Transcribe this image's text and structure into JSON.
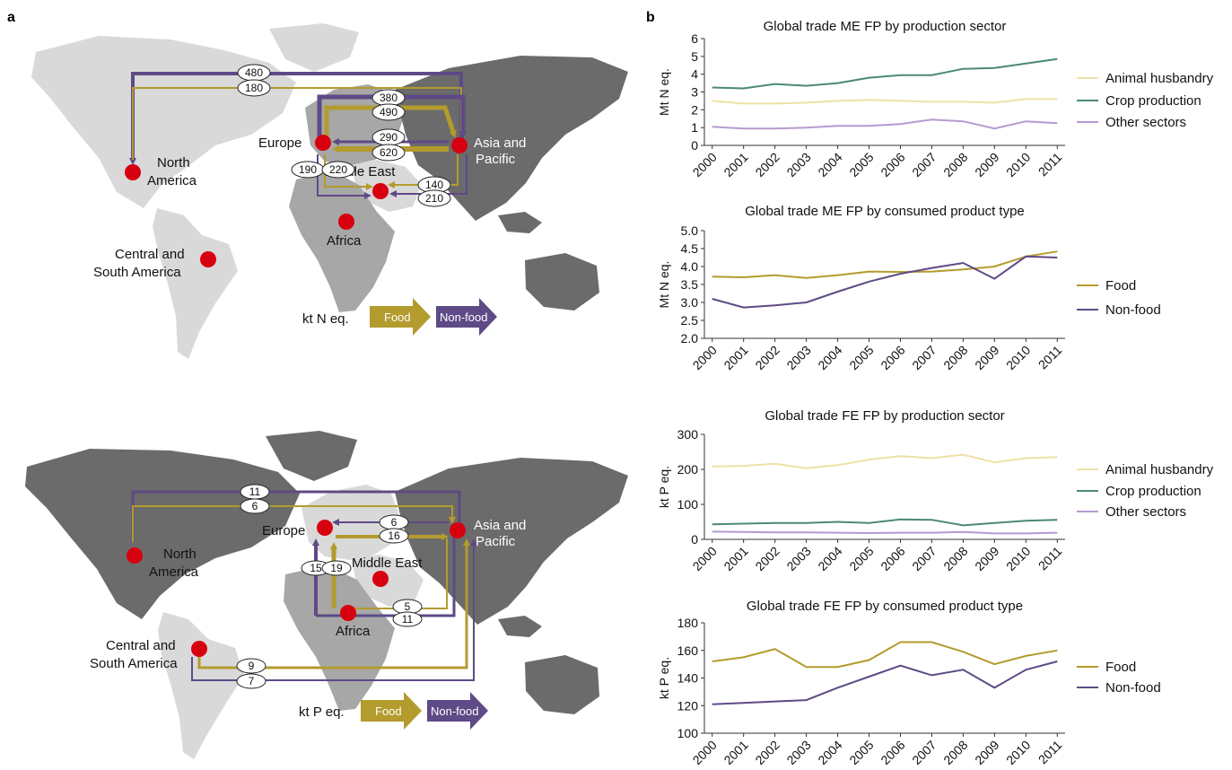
{
  "panel_labels": {
    "a": "a",
    "b": "b"
  },
  "colors": {
    "food": "#b39b2e",
    "nonfood": "#5e4a86",
    "animal": "#ede1a6",
    "crop": "#4a8a72",
    "other": "#b49bd0",
    "region_dark": "#6b6b6b",
    "region_mid": "#a7a7a7",
    "region_light": "#d9d9d9",
    "node": "#d7000f"
  },
  "maps": [
    {
      "unit_label": "kt N eq.",
      "legend_food": "Food",
      "legend_nonfood": "Non-food",
      "regions": {
        "north_america": [
          "North",
          "America"
        ],
        "central_south_america": [
          "Central and",
          "South America"
        ],
        "europe": [
          "Europe"
        ],
        "middle_east": [
          "Middle East"
        ],
        "africa": [
          "Africa"
        ],
        "asia_pacific": [
          "Asia and",
          "Pacific"
        ]
      },
      "flow_values": [
        "480",
        "180",
        "380",
        "490",
        "290",
        "620",
        "190",
        "220",
        "140",
        "210"
      ]
    },
    {
      "unit_label": "kt P eq.",
      "legend_food": "Food",
      "legend_nonfood": "Non-food",
      "regions": {
        "north_america": [
          "North",
          "America"
        ],
        "central_south_america": [
          "Central and",
          "South America"
        ],
        "europe": [
          "Europe"
        ],
        "middle_east": [
          "Middle East"
        ],
        "africa": [
          "Africa"
        ],
        "asia_pacific": [
          "Asia and",
          "Pacific"
        ]
      },
      "flow_values": [
        "11",
        "6",
        "6",
        "16",
        "15",
        "19",
        "5",
        "11",
        "9",
        "7"
      ]
    }
  ],
  "chart_data": [
    {
      "type": "line",
      "title": "Global trade ME FP by production sector",
      "ylabel": "Mt N eq.",
      "x": [
        "2000",
        "2001",
        "2002",
        "2003",
        "2004",
        "2005",
        "2006",
        "2007",
        "2008",
        "2009",
        "2010",
        "2011"
      ],
      "ylim": [
        0,
        6
      ],
      "yticks": [
        "0",
        "1",
        "2",
        "3",
        "4",
        "5",
        "6"
      ],
      "legend_position": "right",
      "series": [
        {
          "name": "Animal husbandry",
          "color_key": "animal",
          "values": [
            2.5,
            2.35,
            2.35,
            2.4,
            2.5,
            2.55,
            2.5,
            2.45,
            2.45,
            2.4,
            2.6,
            2.6
          ]
        },
        {
          "name": "Crop production",
          "color_key": "crop",
          "values": [
            3.25,
            3.2,
            3.45,
            3.35,
            3.5,
            3.8,
            3.95,
            3.95,
            4.3,
            4.35,
            4.6,
            4.85
          ]
        },
        {
          "name": "Other sectors",
          "color_key": "other",
          "values": [
            1.05,
            0.95,
            0.95,
            1.0,
            1.1,
            1.1,
            1.2,
            1.45,
            1.35,
            0.95,
            1.35,
            1.25
          ]
        }
      ]
    },
    {
      "type": "line",
      "title": "Global trade ME FP by consumed product type",
      "ylabel": "Mt N eq.",
      "x": [
        "2000",
        "2001",
        "2002",
        "2003",
        "2004",
        "2005",
        "2006",
        "2007",
        "2008",
        "2009",
        "2010",
        "2011"
      ],
      "ylim": [
        2.0,
        5.0
      ],
      "yticks": [
        "2.0",
        "2.5",
        "3.0",
        "3.5",
        "4.0",
        "4.5",
        "5.0"
      ],
      "legend_position": "right",
      "series": [
        {
          "name": "Food",
          "color_key": "food",
          "values": [
            3.72,
            3.7,
            3.76,
            3.68,
            3.76,
            3.86,
            3.85,
            3.86,
            3.92,
            4.0,
            4.28,
            4.42
          ]
        },
        {
          "name": "Non-food",
          "color_key": "nonfood",
          "values": [
            3.1,
            2.86,
            2.92,
            3.0,
            3.3,
            3.58,
            3.8,
            3.96,
            4.1,
            3.66,
            4.28,
            4.25
          ]
        }
      ]
    },
    {
      "type": "line",
      "title": "Global trade FE FP by production sector",
      "ylabel": "kt P eq.",
      "x": [
        "2000",
        "2001",
        "2002",
        "2003",
        "2004",
        "2005",
        "2006",
        "2007",
        "2008",
        "2009",
        "2010",
        "2011"
      ],
      "ylim": [
        0,
        300
      ],
      "yticks": [
        "0",
        "100",
        "200",
        "300"
      ],
      "legend_position": "right",
      "series": [
        {
          "name": "Animal husbandry",
          "color_key": "animal",
          "values": [
            208,
            210,
            216,
            203,
            212,
            228,
            238,
            232,
            242,
            220,
            232,
            235
          ]
        },
        {
          "name": "Crop production",
          "color_key": "crop",
          "values": [
            43,
            45,
            47,
            47,
            50,
            47,
            57,
            56,
            40,
            47,
            53,
            56
          ]
        },
        {
          "name": "Other sectors",
          "color_key": "other",
          "values": [
            22,
            21,
            20,
            20,
            19,
            18,
            19,
            19,
            21,
            17,
            17,
            19
          ]
        }
      ]
    },
    {
      "type": "line",
      "title": "Global trade FE FP by consumed product type",
      "ylabel": "kt P eq.",
      "x": [
        "2000",
        "2001",
        "2002",
        "2003",
        "2004",
        "2005",
        "2006",
        "2007",
        "2008",
        "2009",
        "2010",
        "2011"
      ],
      "ylim": [
        100,
        180
      ],
      "yticks": [
        "100",
        "120",
        "140",
        "160",
        "180"
      ],
      "legend_position": "right",
      "series": [
        {
          "name": "Food",
          "color_key": "food",
          "values": [
            152,
            155,
            161,
            148,
            148,
            153,
            166,
            166,
            159,
            150,
            156,
            160
          ]
        },
        {
          "name": "Non-food",
          "color_key": "nonfood",
          "values": [
            121,
            122,
            123,
            124,
            133,
            141,
            149,
            142,
            146,
            133,
            146,
            152
          ]
        }
      ]
    }
  ]
}
